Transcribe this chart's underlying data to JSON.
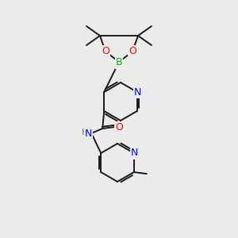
{
  "background_color": "#ebebeb",
  "bond_color": "#1a1a1a",
  "atom_colors": {
    "N": "#0000ff",
    "O": "#ff0000",
    "B": "#00bb00",
    "C": "#1a1a1a",
    "H": "#4080a0"
  },
  "figsize": [
    3.0,
    3.0
  ],
  "dpi": 100
}
